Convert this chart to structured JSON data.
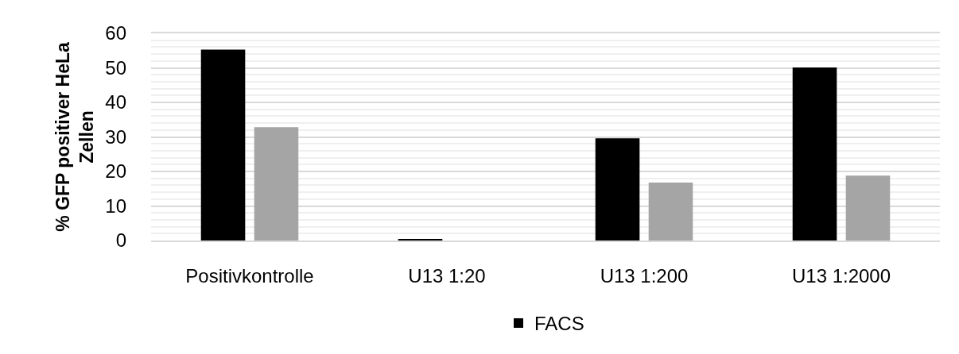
{
  "chart_data": {
    "type": "bar",
    "ylabel": "% GFP positiver HeLa Zellen",
    "categories": [
      "Positivkontrolle",
      "U13 1:20",
      "U13 1:200",
      "U13 1:2000"
    ],
    "series": [
      {
        "name": "FACS",
        "color": "#000000",
        "values": [
          55.3,
          0.3,
          29.6,
          50.1
        ]
      },
      {
        "color": "#a5a5a5",
        "values": [
          32.8,
          null,
          16.8,
          18.8
        ]
      }
    ],
    "ylim": [
      0,
      60
    ],
    "yticks": [
      0,
      10,
      20,
      30,
      40,
      50,
      60
    ],
    "grid": "y",
    "legend": "bottom"
  }
}
